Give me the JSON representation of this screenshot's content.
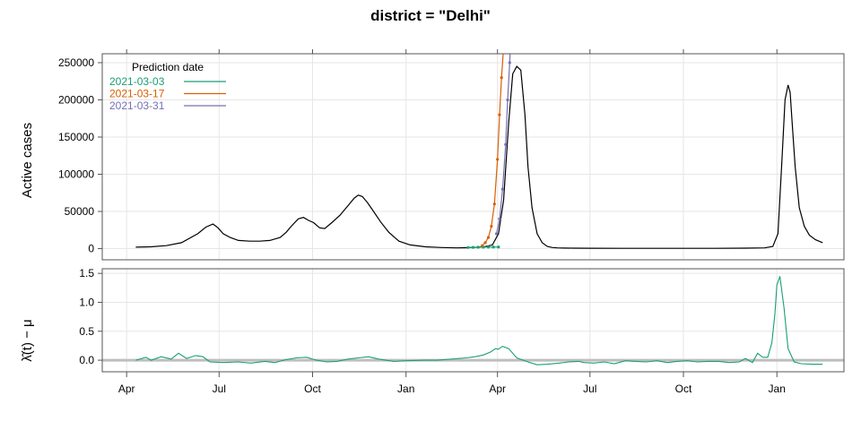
{
  "chart_data": {
    "type": "line",
    "title": "district = \"Delhi\"",
    "panels": [
      {
        "name": "active-cases",
        "ylabel": "Active cases",
        "ylim": [
          -15000,
          262000
        ],
        "yticks": [
          0,
          50000,
          100000,
          150000,
          200000,
          250000
        ],
        "ytick_labels": [
          "0",
          "50000",
          "100000",
          "150000",
          "200000",
          "250000"
        ],
        "grid": true,
        "legend": {
          "title": "Prediction date",
          "placement": "top-left",
          "entries": [
            "2021-03-03",
            "2021-03-17",
            "2021-03-31"
          ]
        },
        "series": [
          {
            "kind": "observed",
            "color": "#000000",
            "x": [
              "2020-04-10",
              "2020-04-25",
              "2020-05-10",
              "2020-05-25",
              "2020-06-10",
              "2020-06-18",
              "2020-06-25",
              "2020-06-30",
              "2020-07-05",
              "2020-07-12",
              "2020-07-20",
              "2020-07-31",
              "2020-08-10",
              "2020-08-20",
              "2020-08-30",
              "2020-09-05",
              "2020-09-10",
              "2020-09-17",
              "2020-09-22",
              "2020-09-27",
              "2020-10-02",
              "2020-10-08",
              "2020-10-13",
              "2020-10-20",
              "2020-10-28",
              "2020-11-05",
              "2020-11-11",
              "2020-11-15",
              "2020-11-19",
              "2020-11-24",
              "2020-11-30",
              "2020-12-07",
              "2020-12-15",
              "2020-12-25",
              "2021-01-05",
              "2021-01-20",
              "2021-02-05",
              "2021-02-20",
              "2021-03-01",
              "2021-03-10",
              "2021-03-20",
              "2021-03-27",
              "2021-04-02",
              "2021-04-07",
              "2021-04-12",
              "2021-04-16",
              "2021-04-20",
              "2021-04-24",
              "2021-04-28",
              "2021-05-01",
              "2021-05-05",
              "2021-05-10",
              "2021-05-15",
              "2021-05-20",
              "2021-05-25",
              "2021-05-30",
              "2021-06-05",
              "2021-06-15",
              "2021-07-01",
              "2021-08-01",
              "2021-09-01",
              "2021-10-01",
              "2021-11-01",
              "2021-12-01",
              "2021-12-20",
              "2021-12-28",
              "2022-01-02",
              "2022-01-06",
              "2022-01-09",
              "2022-01-12",
              "2022-01-14",
              "2022-01-16",
              "2022-01-19",
              "2022-01-23",
              "2022-01-28",
              "2022-02-02",
              "2022-02-08",
              "2022-02-15"
            ],
            "y": [
              2000,
              2500,
              4000,
              8000,
              20000,
              29000,
              33000,
              28000,
              20000,
              15000,
              11000,
              10000,
              10000,
              11000,
              15000,
              22000,
              30000,
              40000,
              42000,
              38000,
              35000,
              28000,
              27000,
              35000,
              45000,
              58000,
              68000,
              72000,
              70000,
              62000,
              50000,
              36000,
              22000,
              10000,
              5000,
              2500,
              1500,
              1000,
              1200,
              1800,
              2800,
              5000,
              20000,
              65000,
              170000,
              235000,
              245000,
              240000,
              180000,
              110000,
              55000,
              20000,
              8000,
              3000,
              1500,
              1000,
              800,
              600,
              500,
              400,
              400,
              400,
              400,
              600,
              1000,
              3000,
              20000,
              120000,
              200000,
              220000,
              210000,
              170000,
              110000,
              55000,
              30000,
              18000,
              12000,
              8000
            ]
          },
          {
            "kind": "forecast",
            "name": "2021-03-03",
            "color": "#1b9e77",
            "x": [
              "2021-03-03",
              "2021-03-08",
              "2021-03-13",
              "2021-03-18",
              "2021-03-23",
              "2021-03-28",
              "2021-04-02"
            ],
            "y": [
              1500,
              1700,
              1900,
              2000,
              2100,
              2150,
              2200
            ]
          },
          {
            "kind": "forecast",
            "name": "2021-03-17",
            "color": "#d95f02",
            "x": [
              "2021-03-17",
              "2021-03-20",
              "2021-03-23",
              "2021-03-26",
              "2021-03-29",
              "2021-04-01",
              "2021-04-03",
              "2021-04-05",
              "2021-04-08"
            ],
            "y": [
              4000,
              8000,
              15000,
              30000,
              60000,
              120000,
              180000,
              230000,
              290000
            ]
          },
          {
            "kind": "forecast",
            "name": "2021-03-31",
            "color": "#7570b3",
            "x": [
              "2021-03-31",
              "2021-04-03",
              "2021-04-06",
              "2021-04-09",
              "2021-04-11",
              "2021-04-13",
              "2021-04-14"
            ],
            "y": [
              20000,
              40000,
              80000,
              140000,
              200000,
              250000,
              280000
            ]
          }
        ]
      },
      {
        "name": "lambda",
        "ylabel": "λ̂(t) − μ",
        "ylim": [
          -0.2,
          1.58
        ],
        "yticks": [
          0.0,
          0.5,
          1.0,
          1.5
        ],
        "ytick_labels": [
          "0.0",
          "0.5",
          "1.0",
          "1.5"
        ],
        "grid": true,
        "reference_line": {
          "y": 0,
          "color": "#bebebe"
        },
        "series": [
          {
            "color": "#1b9e77",
            "x": [
              "2020-04-10",
              "2020-04-20",
              "2020-04-25",
              "2020-05-05",
              "2020-05-15",
              "2020-05-22",
              "2020-05-30",
              "2020-06-08",
              "2020-06-15",
              "2020-06-22",
              "2020-07-05",
              "2020-07-20",
              "2020-08-01",
              "2020-08-15",
              "2020-08-25",
              "2020-09-05",
              "2020-09-15",
              "2020-09-25",
              "2020-10-05",
              "2020-10-15",
              "2020-10-25",
              "2020-11-05",
              "2020-11-15",
              "2020-11-25",
              "2020-12-05",
              "2020-12-20",
              "2021-01-01",
              "2021-01-20",
              "2021-02-01",
              "2021-02-15",
              "2021-03-01",
              "2021-03-10",
              "2021-03-18",
              "2021-03-25",
              "2021-03-30",
              "2021-04-02",
              "2021-04-06",
              "2021-04-12",
              "2021-04-20",
              "2021-05-01",
              "2021-05-10",
              "2021-05-20",
              "2021-06-01",
              "2021-06-10",
              "2021-06-20",
              "2021-06-25",
              "2021-07-05",
              "2021-07-15",
              "2021-07-25",
              "2021-08-05",
              "2021-08-15",
              "2021-08-25",
              "2021-09-05",
              "2021-09-15",
              "2021-09-25",
              "2021-10-05",
              "2021-10-15",
              "2021-10-25",
              "2021-11-05",
              "2021-11-15",
              "2021-11-25",
              "2021-12-01",
              "2021-12-08",
              "2021-12-13",
              "2021-12-18",
              "2021-12-23",
              "2021-12-27",
              "2021-12-30",
              "2022-01-01",
              "2022-01-04",
              "2022-01-08",
              "2022-01-12",
              "2022-01-18",
              "2022-01-25",
              "2022-02-05",
              "2022-02-15"
            ],
            "y": [
              0.0,
              0.05,
              0.0,
              0.06,
              0.02,
              0.12,
              0.03,
              0.08,
              0.06,
              -0.03,
              -0.04,
              -0.03,
              -0.05,
              -0.02,
              -0.04,
              0.01,
              0.04,
              0.05,
              0.0,
              -0.03,
              -0.02,
              0.02,
              0.04,
              0.06,
              0.02,
              -0.02,
              -0.01,
              0.0,
              0.0,
              0.02,
              0.04,
              0.06,
              0.09,
              0.14,
              0.2,
              0.19,
              0.24,
              0.2,
              0.04,
              -0.03,
              -0.08,
              -0.07,
              -0.05,
              -0.03,
              -0.02,
              -0.04,
              -0.05,
              -0.03,
              -0.06,
              -0.01,
              -0.02,
              -0.03,
              -0.01,
              -0.04,
              -0.02,
              -0.01,
              -0.03,
              -0.02,
              -0.02,
              -0.04,
              -0.03,
              0.03,
              -0.04,
              0.12,
              0.05,
              0.05,
              0.3,
              0.8,
              1.3,
              1.45,
              0.9,
              0.2,
              -0.03,
              -0.06,
              -0.07,
              -0.07
            ]
          }
        ]
      }
    ],
    "x_axis": {
      "type": "date",
      "xlim": [
        "2020-03-08",
        "2022-03-08"
      ],
      "tick_dates": [
        "2020-04-01",
        "2020-07-01",
        "2020-10-01",
        "2021-01-01",
        "2021-04-01",
        "2021-07-01",
        "2021-10-01",
        "2022-01-01"
      ],
      "tick_labels": [
        "Apr",
        "Jul",
        "Oct",
        "Jan",
        "Apr",
        "Jul",
        "Oct",
        "Jan"
      ]
    }
  }
}
